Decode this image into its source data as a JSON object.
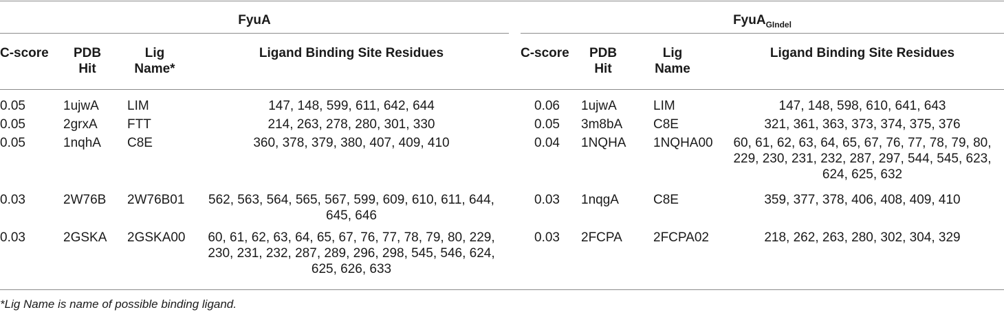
{
  "table": {
    "groups": [
      {
        "label": "FyuA"
      },
      {
        "label": "FyuA",
        "subscript": "GIndel"
      }
    ],
    "left_headers": {
      "cscore": "C-score",
      "pdb": [
        "PDB",
        "Hit"
      ],
      "lig": [
        "Lig",
        "Name*"
      ],
      "residues": "Ligand Binding Site Residues"
    },
    "right_headers": {
      "cscore": "C-score",
      "pdb": [
        "PDB",
        "Hit"
      ],
      "lig": [
        "Lig",
        "Name"
      ],
      "residues": "Ligand Binding Site Residues"
    },
    "left_rows": [
      {
        "cscore": "0.05",
        "pdb": "1ujwA",
        "lig": "LIM",
        "residues": [
          "147, 148, 599, 611, 642, 644"
        ]
      },
      {
        "cscore": "0.05",
        "pdb": "2grxA",
        "lig": "FTT",
        "residues": [
          "214, 263, 278, 280, 301, 330"
        ]
      },
      {
        "cscore": "0.05",
        "pdb": "1nqhA",
        "lig": "C8E",
        "residues": [
          "360, 378, 379, 380, 407, 409, 410"
        ]
      },
      {
        "cscore": "0.03",
        "pdb": "2W76B",
        "lig": "2W76B01",
        "residues": [
          "562, 563, 564, 565, 567, 599, 609, 610, 611, 644,",
          "645, 646"
        ]
      },
      {
        "cscore": "0.03",
        "pdb": "2GSKA",
        "lig": "2GSKA00",
        "residues": [
          "60, 61, 62, 63, 64, 65, 67, 76, 77, 78, 79, 80, 229,",
          "230, 231, 232, 287, 289, 296, 298, 545, 546, 624,",
          "625, 626, 633"
        ]
      }
    ],
    "right_rows": [
      {
        "cscore": "0.06",
        "pdb": "1ujwA",
        "lig": "LIM",
        "residues": [
          "147, 148, 598, 610, 641, 643"
        ]
      },
      {
        "cscore": "0.05",
        "pdb": "3m8bA",
        "lig": "C8E",
        "residues": [
          "321, 361, 363, 373, 374, 375, 376"
        ]
      },
      {
        "cscore": "0.04",
        "pdb": "1NQHA",
        "lig": "1NQHA00",
        "residues": [
          "60, 61, 62, 63, 64, 65, 67, 76, 77, 78, 79, 80,",
          "229, 230, 231, 232, 287, 297, 544, 545, 623,",
          "624, 625, 632"
        ]
      },
      {
        "cscore": "0.03",
        "pdb": "1nqgA",
        "lig": "C8E",
        "residues": [
          "359, 377, 378, 406, 408, 409, 410"
        ]
      },
      {
        "cscore": "0.03",
        "pdb": "2FCPA",
        "lig": "2FCPA02",
        "residues": [
          "218, 262, 263, 280, 302, 304, 329"
        ]
      }
    ],
    "footnote": "*Lig Name is name of possible binding ligand."
  }
}
